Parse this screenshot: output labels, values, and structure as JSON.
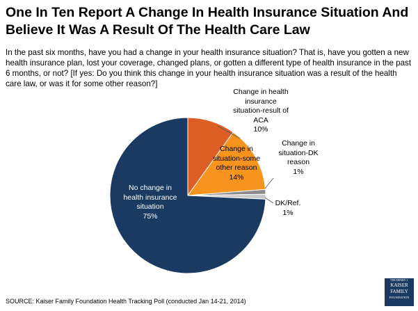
{
  "chart_data": {
    "type": "pie",
    "title": "One In Ten Report A Change In Health Insurance Situation And Believe It Was A Result Of The Health Care Law",
    "subtitle": "In the past six months, have you had a change in your health insurance situation? That is, have you gotten a new health insurance plan, lost your coverage, changed  plans, or gotten a different type of health insurance in the past 6 months, or not? [If yes: Do you think this change in your health insurance situation was a result of the health care law, or was it for some other reason?]",
    "categories": [
      "Change in health insurance situation-result of ACA",
      "Change in situation-some other reason",
      "Change in situation-DK reason",
      "DK/Ref.",
      "No change in health insurance situation"
    ],
    "values": [
      10,
      14,
      1,
      1,
      75
    ],
    "value_labels": [
      "10%",
      "14%",
      "1%",
      "1%",
      "75%"
    ],
    "colors": [
      "#dd5f26",
      "#f7941d",
      "#8c8c8c",
      "#c9c9c9",
      "#1b3a61"
    ],
    "source": "SOURCE: Kaiser Family Foundation Health Tracking Poll (conducted Jan 14-21, 2014)",
    "logo": [
      "THE HENRY J.",
      "KAISER",
      "FAMILY",
      "FOUNDATION"
    ]
  }
}
